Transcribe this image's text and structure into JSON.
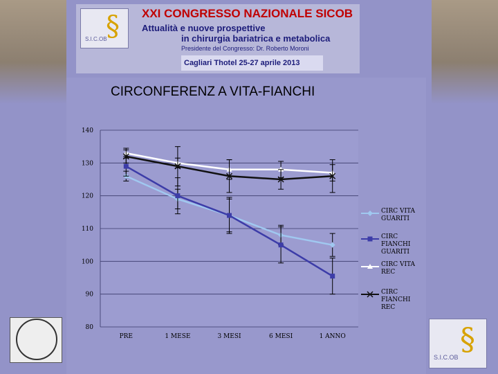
{
  "banner": {
    "title": "XXI CONGRESSO NAZIONALE SICOB",
    "subtitle1": "Attualità e nuove prospettive",
    "subtitle2": "in chirurgia bariatrica e metabolica",
    "president": "Presidente del Congresso: Dr. Roberto Moroni",
    "date": "Cagliari Thotel 25-27 aprile 2013",
    "logo_text": "S.I.C.OB"
  },
  "chart_data": {
    "type": "line",
    "title": "CIRCONFERENZ A VITA-FIANCHI",
    "categories": [
      "PRE",
      "1 MESE",
      "3 MESI",
      "6 MESI",
      "1 ANNO"
    ],
    "ylim": [
      80,
      140
    ],
    "yticks": [
      80,
      90,
      100,
      110,
      120,
      130,
      140
    ],
    "grid": true,
    "legend_position": "right",
    "series": [
      {
        "name": "CIRC VITA GUARITI",
        "values": [
          126,
          119,
          114,
          108,
          105
        ],
        "err": [
          1.5,
          3,
          5,
          3,
          3.5
        ],
        "color": "#a0c8f0",
        "marker": "diamond"
      },
      {
        "name": "CIRC FIANCHI GUARITI",
        "values": [
          129,
          120,
          114,
          105,
          95.5
        ],
        "err": [
          3,
          5.5,
          5.5,
          5.5,
          5.5
        ],
        "color": "#3c3ca8",
        "marker": "square"
      },
      {
        "name": "CIRC VITA REC",
        "values": [
          133,
          130,
          128,
          128,
          127
        ],
        "err": [
          1.5,
          1.5,
          3,
          2.5,
          2.5
        ],
        "color": "#ffffff",
        "marker": "triangle"
      },
      {
        "name": "CIRC FIANCHI REC",
        "values": [
          132,
          129,
          126,
          125,
          126
        ],
        "err": [
          2,
          6,
          5,
          3,
          5
        ],
        "color": "#111111",
        "marker": "x"
      }
    ]
  }
}
